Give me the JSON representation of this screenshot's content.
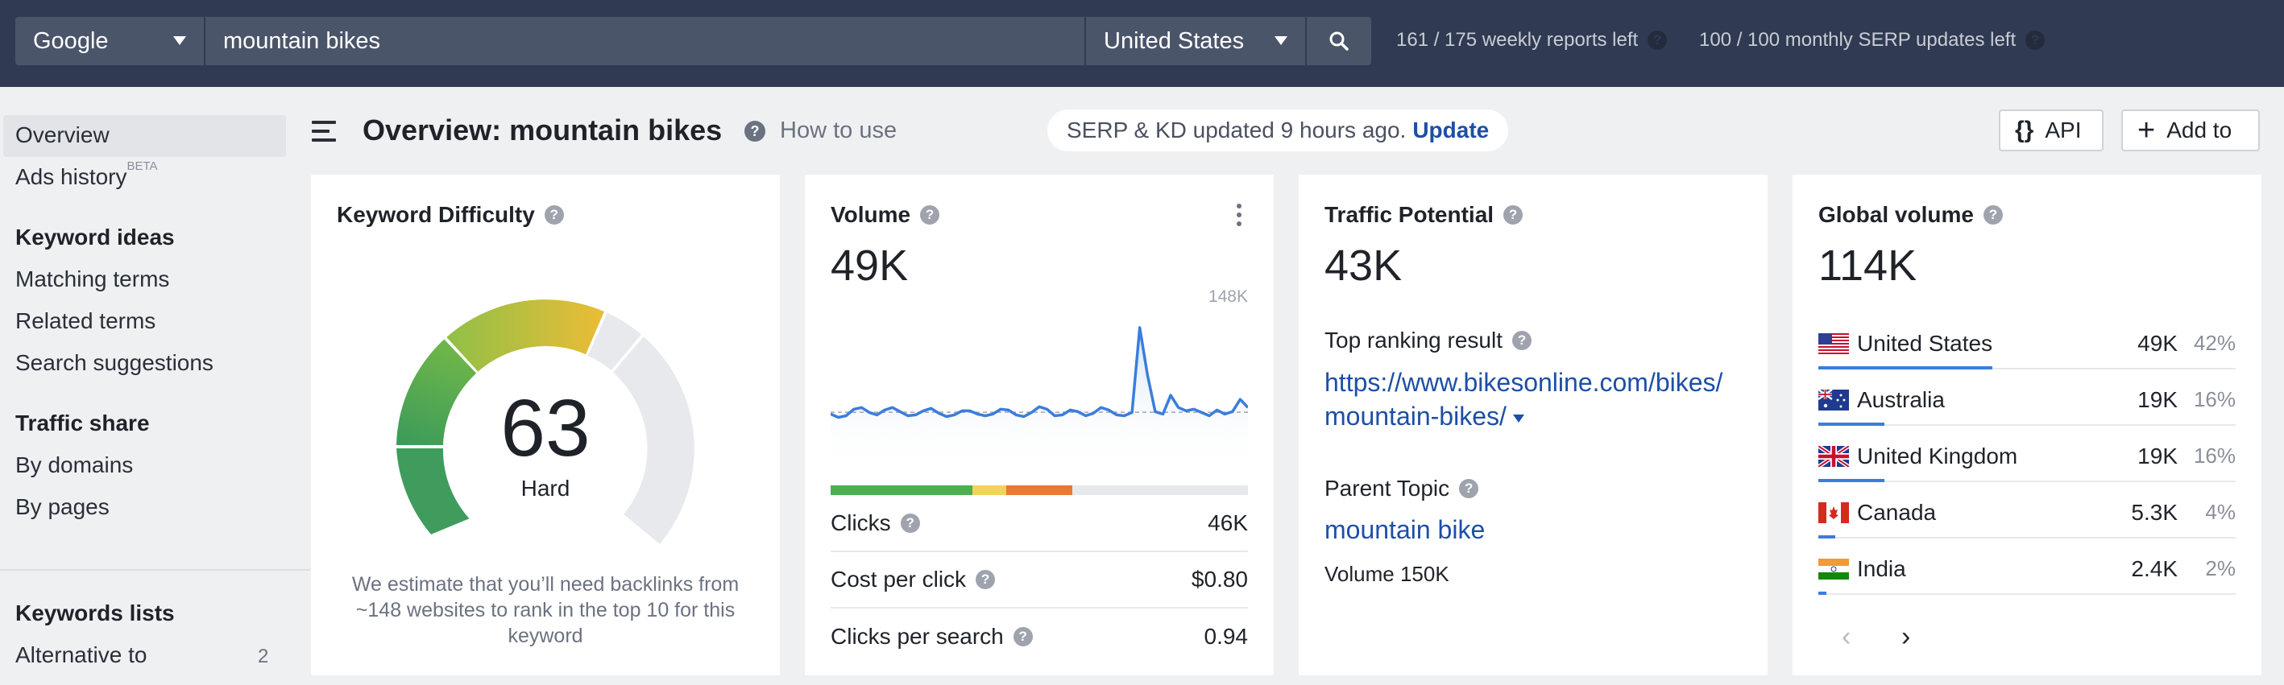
{
  "topbar": {
    "engine": "Google",
    "query": "mountain bikes",
    "country": "United States",
    "weekly_reports": "161 / 175 weekly reports left",
    "monthly_serp": "100 / 100 monthly SERP updates left"
  },
  "sidebar": {
    "overview": "Overview",
    "ads_history": "Ads history",
    "beta": "BETA",
    "keyword_ideas": "Keyword ideas",
    "matching_terms": "Matching terms",
    "related_terms": "Related terms",
    "search_suggestions": "Search suggestions",
    "traffic_share": "Traffic share",
    "by_domains": "By domains",
    "by_pages": "By pages",
    "keywords_lists": "Keywords lists",
    "alternative_to": "Alternative to",
    "alternative_to_count": "2"
  },
  "header": {
    "title": "Overview: mountain bikes",
    "how_to_use": "How to use",
    "serp_status": "SERP & KD updated 9 hours ago.",
    "update_link": "Update",
    "api_button": "API",
    "api_icon": "{}",
    "add_button": "Add to"
  },
  "kd": {
    "title": "Keyword Difficulty",
    "score": "63",
    "label": "Hard",
    "description": "We estimate that you’ll need backlinks from ~148 websites to rank in the top 10 for this keyword"
  },
  "volume": {
    "title": "Volume",
    "value": "49K",
    "max_label": "148K",
    "click_split": {
      "organic": 0.34,
      "paid": 0.08,
      "no_clicks_dark": 0.16
    },
    "rows": [
      {
        "label": "Clicks",
        "value": "46K"
      },
      {
        "label": "Cost per click",
        "value": "$0.80"
      },
      {
        "label": "Clicks per search",
        "value": "0.94"
      }
    ]
  },
  "traffic": {
    "title": "Traffic Potential",
    "value": "43K",
    "top_result_label": "Top ranking result",
    "top_result_url_1": "https://www.bikesonline.com/bikes/",
    "top_result_url_2": "mountain-bikes/",
    "parent_topic_label": "Parent Topic",
    "parent_topic": "mountain bike",
    "parent_volume": "Volume 150K"
  },
  "global": {
    "title": "Global volume",
    "value": "114K",
    "countries": [
      {
        "name": "United States",
        "volume": "49K",
        "pct": "42%",
        "share": 0.42
      },
      {
        "name": "Australia",
        "volume": "19K",
        "pct": "16%",
        "share": 0.16
      },
      {
        "name": "United Kingdom",
        "volume": "19K",
        "pct": "16%",
        "share": 0.16
      },
      {
        "name": "Canada",
        "volume": "5.3K",
        "pct": "4%",
        "share": 0.04
      },
      {
        "name": "India",
        "volume": "2.4K",
        "pct": "2%",
        "share": 0.02
      }
    ],
    "prev": "‹",
    "next": "›"
  },
  "colors": {
    "accent_link": "#1d4fa5",
    "kd_dark_green": "#3a9a5b",
    "kd_green": "#6db54a",
    "kd_yellow": "#e9bd38",
    "volume_line": "#3b7ddd"
  },
  "chart_data": {
    "type": "line",
    "title": "",
    "ylim": [
      0,
      148000
    ],
    "series": [
      {
        "values": [
          42000,
          38000,
          40000,
          48000,
          50000,
          44000,
          41000,
          47000,
          50000,
          45000,
          40000,
          41000,
          46000,
          49000,
          43000,
          39000,
          41000,
          46000,
          46000,
          42000,
          40000,
          42000,
          48000,
          47000,
          41000,
          39000,
          44000,
          51000,
          48000,
          40000,
          41000,
          47000,
          45000,
          40000,
          43000,
          50000,
          47000,
          41000,
          40000,
          44000,
          148000,
          90000,
          45000,
          42000,
          65000,
          50000,
          46000,
          48000,
          44000,
          40000,
          47000,
          42000,
          45000,
          60000,
          50000
        ]
      }
    ]
  }
}
